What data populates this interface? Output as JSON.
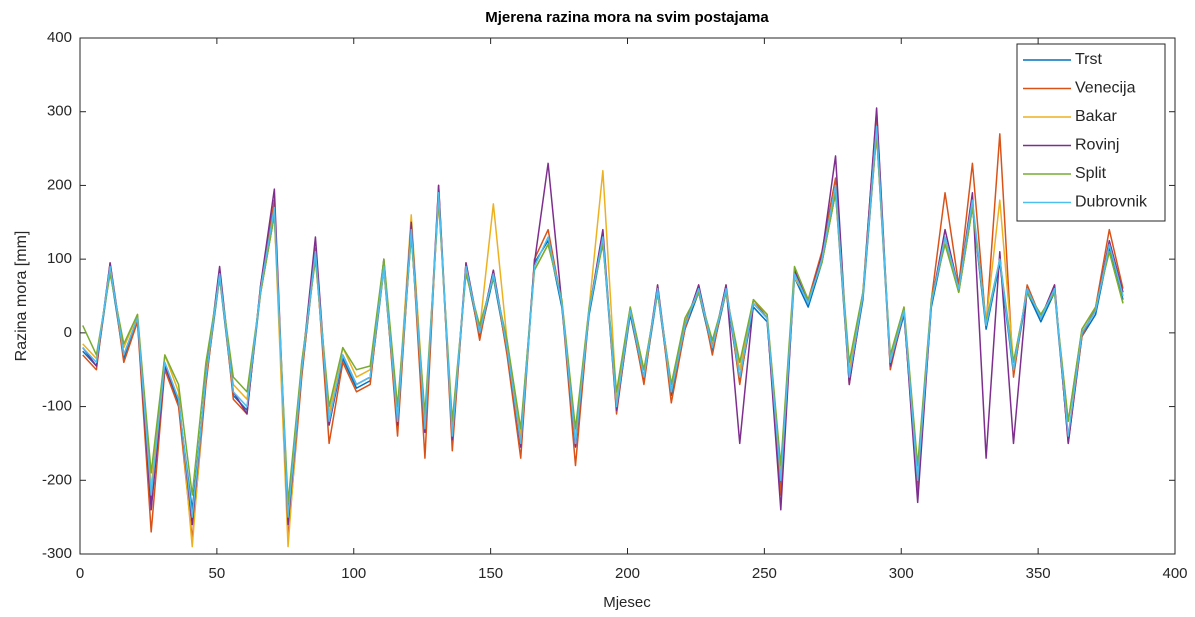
{
  "chart_data": {
    "type": "line",
    "title": "Mjerena razina mora na svim postajama",
    "x_label": "Mjesec",
    "y_label": "Razina mora [mm]",
    "x": [
      1,
      6,
      11,
      16,
      21,
      26,
      31,
      36,
      41,
      46,
      51,
      56,
      61,
      66,
      71,
      76,
      81,
      86,
      91,
      96,
      101,
      106,
      111,
      116,
      121,
      126,
      131,
      136,
      141,
      146,
      151,
      156,
      161,
      166,
      171,
      176,
      181,
      186,
      191,
      196,
      201,
      206,
      211,
      216,
      221,
      226,
      231,
      236,
      241,
      246,
      251,
      256,
      261,
      266,
      271,
      276,
      281,
      286,
      291,
      296,
      301,
      306,
      311,
      316,
      321,
      326,
      331,
      336,
      341,
      346,
      351,
      356,
      361,
      366,
      371,
      376,
      381
    ],
    "series": [
      {
        "name": "Trst",
        "color": "#0072BD",
        "values": [
          -25,
          -45,
          85,
          -35,
          15,
          -230,
          -45,
          -95,
          -240,
          -65,
          75,
          -85,
          -105,
          55,
          160,
          -240,
          -55,
          105,
          -125,
          -35,
          -75,
          -65,
          85,
          -125,
          135,
          -135,
          185,
          -145,
          85,
          -5,
          75,
          -25,
          -140,
          95,
          125,
          35,
          -145,
          25,
          125,
          -105,
          25,
          -65,
          55,
          -85,
          5,
          55,
          -25,
          55,
          -65,
          35,
          15,
          -210,
          75,
          35,
          95,
          190,
          -65,
          45,
          270,
          -45,
          25,
          -210,
          35,
          125,
          55,
          170,
          5,
          95,
          -55,
          55,
          15,
          55,
          -145,
          -5,
          25,
          115,
          45
        ]
      },
      {
        "name": "Venecija",
        "color": "#D95319",
        "values": [
          -30,
          -50,
          95,
          -40,
          15,
          -270,
          -50,
          -100,
          -280,
          -70,
          85,
          -90,
          -110,
          65,
          180,
          -280,
          -60,
          115,
          -150,
          -40,
          -80,
          -70,
          95,
          -140,
          145,
          -170,
          200,
          -160,
          95,
          -10,
          85,
          -30,
          -170,
          100,
          140,
          40,
          -180,
          30,
          135,
          -110,
          30,
          -70,
          65,
          -95,
          5,
          65,
          -30,
          65,
          -70,
          45,
          20,
          -220,
          85,
          45,
          110,
          210,
          -70,
          55,
          300,
          -50,
          30,
          -220,
          45,
          190,
          65,
          230,
          10,
          270,
          -60,
          65,
          20,
          65,
          -150,
          -5,
          35,
          140,
          60
        ]
      },
      {
        "name": "Bakar",
        "color": "#EDB120",
        "values": [
          -15,
          -35,
          85,
          -20,
          25,
          -210,
          -30,
          -80,
          -290,
          -50,
          75,
          -70,
          -90,
          55,
          160,
          -290,
          -40,
          100,
          -110,
          -20,
          -60,
          -50,
          85,
          -110,
          160,
          -120,
          180,
          -130,
          85,
          5,
          175,
          -10,
          -140,
          85,
          120,
          45,
          -140,
          35,
          220,
          -90,
          35,
          -50,
          55,
          -70,
          15,
          55,
          -15,
          55,
          -50,
          45,
          25,
          -190,
          75,
          45,
          95,
          190,
          -50,
          55,
          270,
          -35,
          35,
          -190,
          45,
          125,
          55,
          170,
          15,
          180,
          -40,
          55,
          25,
          55,
          -120,
          5,
          35,
          110,
          40
        ]
      },
      {
        "name": "Rovinj",
        "color": "#7E2F8E",
        "values": [
          -20,
          -45,
          95,
          -30,
          20,
          -240,
          -45,
          -90,
          -260,
          -60,
          90,
          -80,
          -110,
          65,
          195,
          -260,
          -50,
          130,
          -125,
          -30,
          -70,
          -60,
          100,
          -125,
          150,
          -135,
          200,
          -145,
          95,
          0,
          85,
          -20,
          -155,
          95,
          230,
          40,
          -155,
          30,
          140,
          -105,
          30,
          -60,
          65,
          -80,
          10,
          65,
          -20,
          65,
          -150,
          40,
          20,
          -240,
          85,
          40,
          105,
          240,
          -70,
          50,
          305,
          -45,
          30,
          -230,
          40,
          140,
          60,
          190,
          -170,
          110,
          -150,
          60,
          20,
          65,
          -150,
          0,
          30,
          125,
          55
        ]
      },
      {
        "name": "Split",
        "color": "#77AC30",
        "values": [
          10,
          -30,
          80,
          -15,
          25,
          -190,
          -30,
          -70,
          -220,
          -40,
          75,
          -60,
          -80,
          55,
          160,
          -230,
          -40,
          100,
          -100,
          -20,
          -50,
          -45,
          100,
          -100,
          130,
          -110,
          180,
          -120,
          80,
          10,
          75,
          -10,
          -130,
          85,
          120,
          45,
          -130,
          35,
          120,
          -80,
          35,
          -50,
          55,
          -70,
          20,
          55,
          -10,
          55,
          -40,
          45,
          25,
          -180,
          90,
          45,
          95,
          190,
          -40,
          55,
          270,
          -30,
          35,
          -180,
          45,
          120,
          55,
          170,
          15,
          100,
          -40,
          55,
          25,
          55,
          -120,
          5,
          35,
          110,
          40
        ]
      },
      {
        "name": "Dubrovnik",
        "color": "#4DBEEE",
        "values": [
          -20,
          -40,
          90,
          -30,
          20,
          -220,
          -40,
          -90,
          -250,
          -60,
          80,
          -80,
          -100,
          60,
          170,
          -250,
          -50,
          110,
          -120,
          -30,
          -70,
          -60,
          90,
          -120,
          140,
          -130,
          190,
          -140,
          90,
          0,
          80,
          -20,
          -150,
          90,
          130,
          40,
          -150,
          30,
          130,
          -100,
          30,
          -60,
          60,
          -80,
          10,
          60,
          -20,
          60,
          -60,
          40,
          20,
          -200,
          80,
          40,
          100,
          200,
          -60,
          50,
          280,
          -40,
          30,
          -200,
          40,
          130,
          60,
          180,
          10,
          100,
          -50,
          60,
          20,
          60,
          -140,
          0,
          30,
          120,
          50
        ]
      }
    ],
    "xlim": [
      0,
      400
    ],
    "xticks": [
      0,
      50,
      100,
      150,
      200,
      250,
      300,
      350,
      400
    ],
    "ylim": [
      -300,
      400
    ],
    "yticks": [
      -300,
      -200,
      -100,
      0,
      100,
      200,
      300,
      400
    ],
    "legend": "upper right"
  }
}
